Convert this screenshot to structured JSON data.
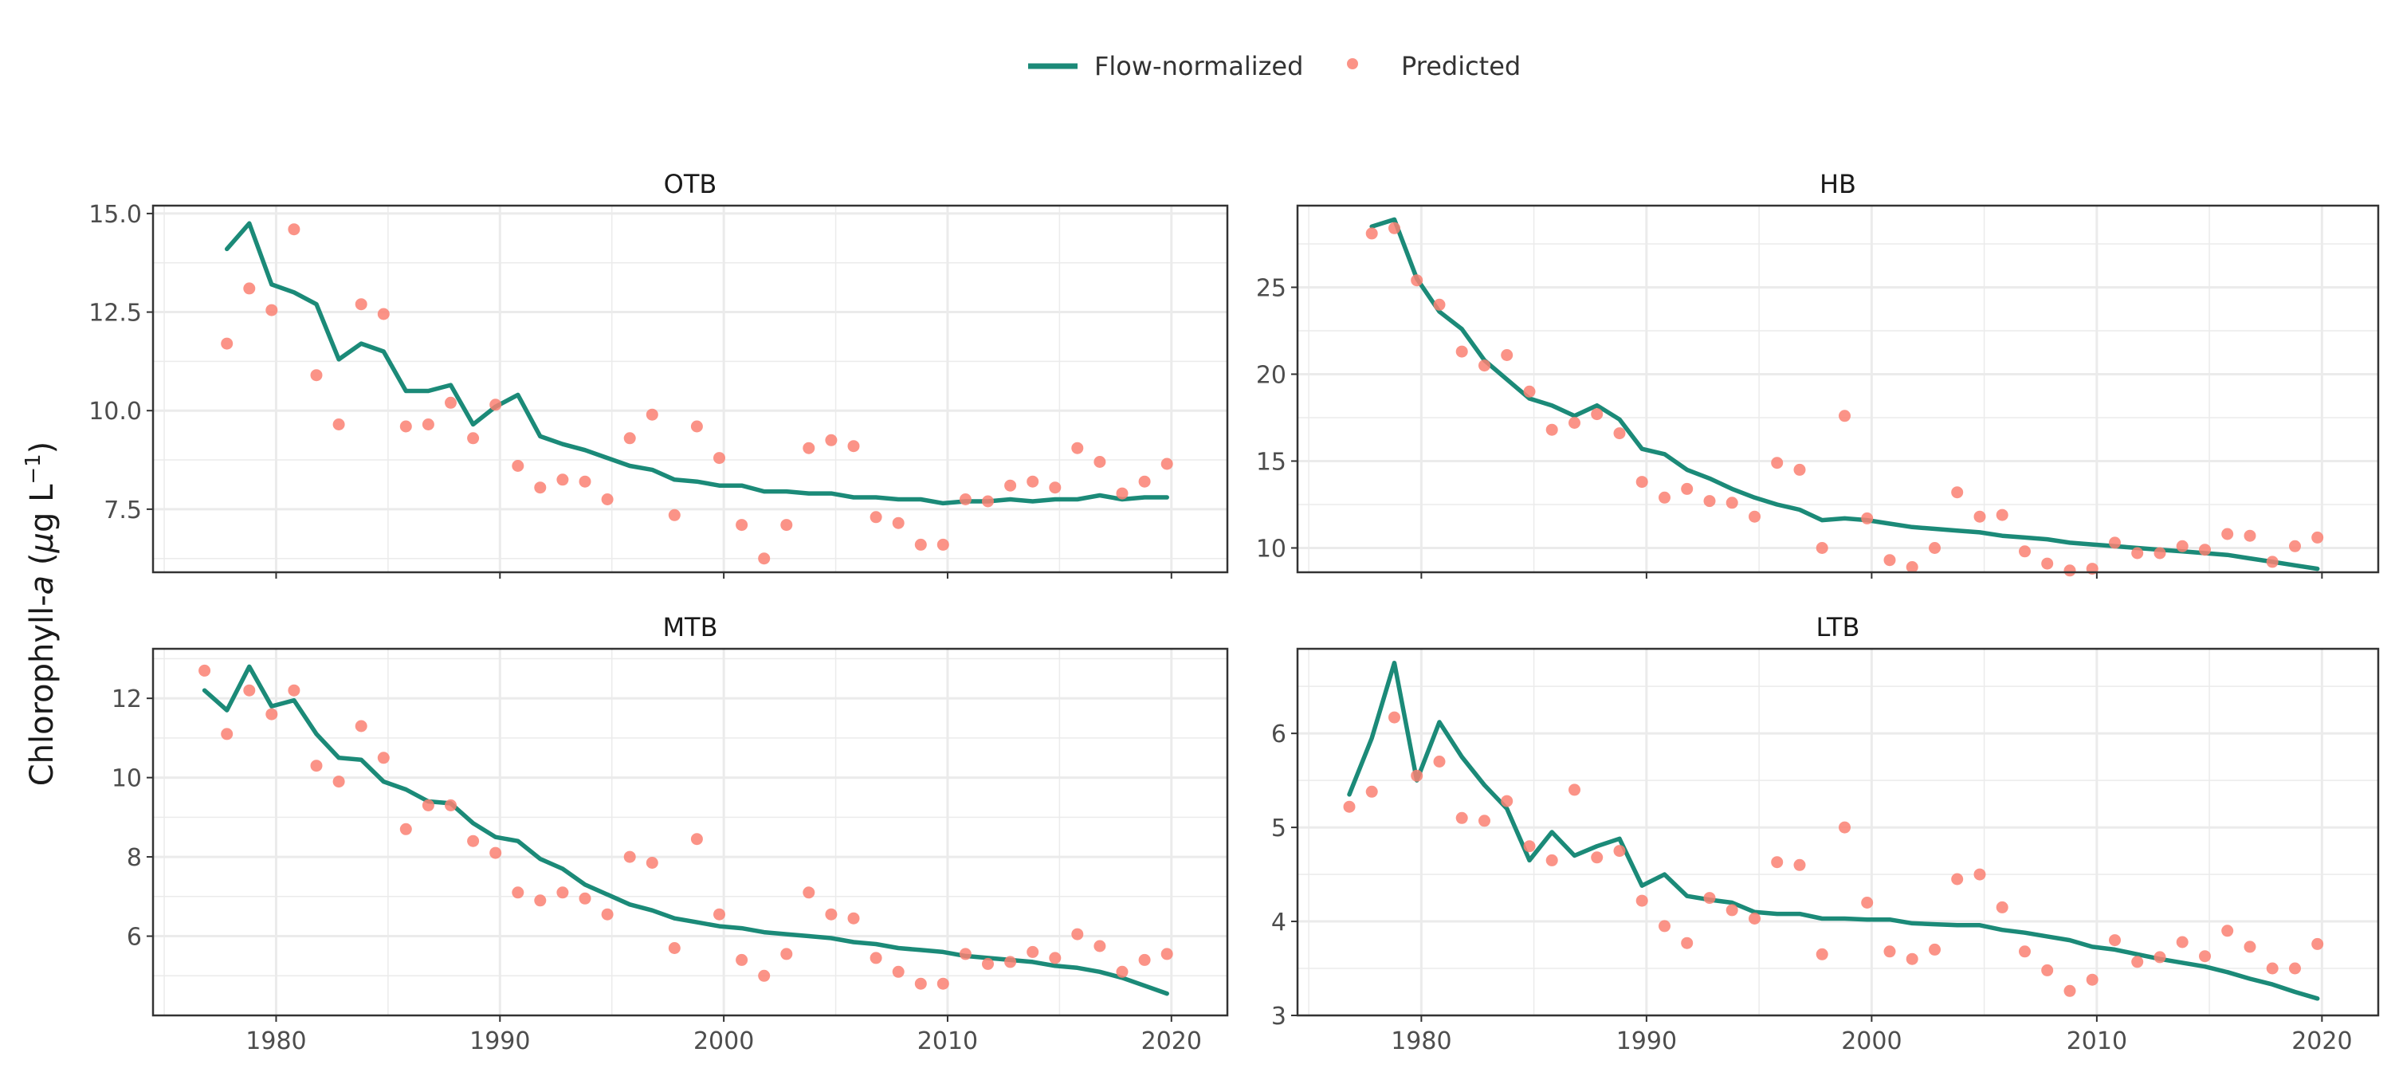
{
  "legend": {
    "flow_label": "Flow-normalized",
    "pred_label": "Predicted"
  },
  "ylabel": {
    "prefix": "Chlorophyll-",
    "italic": "a",
    "open": " (",
    "mu": "μ",
    "unit": "g L",
    "exp": "−1",
    "close": ")"
  },
  "colors": {
    "flow": "#1b8a78",
    "pred": "#fa8072",
    "grid": "#ebebeb",
    "frame": "#333333"
  },
  "chart_data": [
    {
      "type": "line",
      "title": "OTB",
      "xlim": [
        1974.5,
        2022.5
      ],
      "ylim": [
        5.9,
        15.2
      ],
      "xticks": [
        1980,
        1990,
        2000,
        2010,
        2020
      ],
      "yticks": [
        7.5,
        10.0,
        12.5,
        15.0
      ],
      "ytick_labels": [
        "7.5",
        "10.0",
        "12.5",
        "15.0"
      ],
      "show_x_tick_labels": false,
      "series": [
        {
          "name": "Flow-normalized",
          "type": "line",
          "x": [
            1977.8,
            1978.8,
            1979.8,
            1980.8,
            1981.8,
            1982.8,
            1983.8,
            1984.8,
            1985.8,
            1986.8,
            1987.8,
            1988.8,
            1989.8,
            1990.8,
            1991.8,
            1992.8,
            1993.8,
            1994.8,
            1995.8,
            1996.8,
            1997.8,
            1998.8,
            1999.8,
            2000.8,
            2001.8,
            2002.8,
            2003.8,
            2004.8,
            2005.8,
            2006.8,
            2007.8,
            2008.8,
            2009.8,
            2010.8,
            2011.8,
            2012.8,
            2013.8,
            2014.8,
            2015.8,
            2016.8,
            2017.8,
            2018.8,
            2019.8
          ],
          "y": [
            14.1,
            14.75,
            13.2,
            13.0,
            12.7,
            11.3,
            11.7,
            11.5,
            10.5,
            10.5,
            10.65,
            9.65,
            10.1,
            10.4,
            9.35,
            9.15,
            9.0,
            8.8,
            8.6,
            8.5,
            8.25,
            8.2,
            8.1,
            8.1,
            7.95,
            7.95,
            7.9,
            7.9,
            7.8,
            7.8,
            7.75,
            7.75,
            7.65,
            7.7,
            7.7,
            7.75,
            7.7,
            7.75,
            7.75,
            7.85,
            7.75,
            7.8,
            7.8
          ]
        },
        {
          "name": "Predicted",
          "type": "scatter",
          "x": [
            1977.8,
            1978.8,
            1979.8,
            1980.8,
            1981.8,
            1982.8,
            1983.8,
            1984.8,
            1985.8,
            1986.8,
            1987.8,
            1988.8,
            1989.8,
            1990.8,
            1991.8,
            1992.8,
            1993.8,
            1994.8,
            1995.8,
            1996.8,
            1997.8,
            1998.8,
            1999.8,
            2000.8,
            2001.8,
            2002.8,
            2003.8,
            2004.8,
            2005.8,
            2006.8,
            2007.8,
            2008.8,
            2009.8,
            2010.8,
            2011.8,
            2012.8,
            2013.8,
            2014.8,
            2015.8,
            2016.8,
            2017.8,
            2018.8,
            2019.8
          ],
          "y": [
            11.7,
            13.1,
            12.55,
            14.6,
            10.9,
            9.65,
            12.7,
            12.45,
            9.6,
            9.65,
            10.2,
            9.3,
            10.15,
            8.6,
            8.05,
            8.25,
            8.2,
            7.75,
            9.3,
            9.9,
            7.35,
            9.6,
            8.8,
            7.1,
            6.25,
            7.1,
            9.05,
            9.25,
            9.1,
            7.3,
            7.15,
            6.6,
            6.6,
            7.75,
            7.7,
            8.1,
            8.2,
            8.05,
            9.05,
            8.7,
            7.9,
            8.2,
            8.65
          ]
        }
      ]
    },
    {
      "type": "line",
      "title": "HB",
      "xlim": [
        1974.5,
        2022.5
      ],
      "ylim": [
        8.6,
        29.7
      ],
      "xticks": [
        1980,
        1990,
        2000,
        2010,
        2020
      ],
      "yticks": [
        10,
        15,
        20,
        25
      ],
      "ytick_labels": [
        "10",
        "15",
        "20",
        "25"
      ],
      "show_x_tick_labels": false,
      "series": [
        {
          "name": "Flow-normalized",
          "type": "line",
          "x": [
            1977.8,
            1978.8,
            1979.8,
            1980.8,
            1981.8,
            1982.8,
            1983.8,
            1984.8,
            1985.8,
            1986.8,
            1987.8,
            1988.8,
            1989.8,
            1990.8,
            1991.8,
            1992.8,
            1993.8,
            1994.8,
            1995.8,
            1996.8,
            1997.8,
            1998.8,
            1999.8,
            2000.8,
            2001.8,
            2002.8,
            2003.8,
            2004.8,
            2005.8,
            2006.8,
            2007.8,
            2008.8,
            2009.8,
            2010.8,
            2011.8,
            2012.8,
            2013.8,
            2014.8,
            2015.8,
            2016.8,
            2017.8,
            2018.8,
            2019.8
          ],
          "y": [
            28.5,
            28.9,
            25.5,
            23.6,
            22.6,
            20.8,
            19.7,
            18.6,
            18.2,
            17.6,
            18.2,
            17.4,
            15.7,
            15.4,
            14.5,
            14.0,
            13.4,
            12.9,
            12.5,
            12.2,
            11.6,
            11.7,
            11.6,
            11.4,
            11.2,
            11.1,
            11.0,
            10.9,
            10.7,
            10.6,
            10.5,
            10.3,
            10.2,
            10.1,
            10.0,
            9.9,
            9.8,
            9.7,
            9.6,
            9.4,
            9.2,
            9.0,
            8.8
          ]
        },
        {
          "name": "Predicted",
          "type": "scatter",
          "x": [
            1977.8,
            1978.8,
            1979.8,
            1980.8,
            1981.8,
            1982.8,
            1983.8,
            1984.8,
            1985.8,
            1986.8,
            1987.8,
            1988.8,
            1989.8,
            1990.8,
            1991.8,
            1992.8,
            1993.8,
            1994.8,
            1995.8,
            1996.8,
            1997.8,
            1998.8,
            1999.8,
            2000.8,
            2001.8,
            2002.8,
            2003.8,
            2004.8,
            2005.8,
            2006.8,
            2007.8,
            2008.8,
            2009.8,
            2010.8,
            2011.8,
            2012.8,
            2013.8,
            2014.8,
            2015.8,
            2016.8,
            2017.8,
            2018.8,
            2019.8
          ],
          "y": [
            28.1,
            28.4,
            25.4,
            24.0,
            21.3,
            20.5,
            21.1,
            19.0,
            16.8,
            17.2,
            17.7,
            16.6,
            13.8,
            12.9,
            13.4,
            12.7,
            12.6,
            11.8,
            14.9,
            14.5,
            10.0,
            17.6,
            11.7,
            9.3,
            8.9,
            10.0,
            13.2,
            11.8,
            11.9,
            9.8,
            9.1,
            8.7,
            8.8,
            10.3,
            9.7,
            9.7,
            10.1,
            9.9,
            10.8,
            10.7,
            9.2,
            10.1,
            10.6
          ]
        }
      ]
    },
    {
      "type": "line",
      "title": "MTB",
      "xlim": [
        1974.5,
        2022.5
      ],
      "ylim": [
        4.0,
        13.25
      ],
      "xticks": [
        1980,
        1990,
        2000,
        2010,
        2020
      ],
      "yticks": [
        6,
        8,
        10,
        12
      ],
      "ytick_labels": [
        "6",
        "8",
        "10",
        "12"
      ],
      "show_x_tick_labels": true,
      "xtick_labels": [
        "1980",
        "1990",
        "2000",
        "2010",
        "2020"
      ],
      "series": [
        {
          "name": "Flow-normalized",
          "type": "line",
          "x": [
            1976.8,
            1977.8,
            1978.8,
            1979.8,
            1980.8,
            1981.8,
            1982.8,
            1983.8,
            1984.8,
            1985.8,
            1986.8,
            1987.8,
            1988.8,
            1989.8,
            1990.8,
            1991.8,
            1992.8,
            1993.8,
            1994.8,
            1995.8,
            1996.8,
            1997.8,
            1998.8,
            1999.8,
            2000.8,
            2001.8,
            2002.8,
            2003.8,
            2004.8,
            2005.8,
            2006.8,
            2007.8,
            2008.8,
            2009.8,
            2010.8,
            2011.8,
            2012.8,
            2013.8,
            2014.8,
            2015.8,
            2016.8,
            2017.8,
            2018.8,
            2019.8
          ],
          "y": [
            12.2,
            11.7,
            12.8,
            11.8,
            11.95,
            11.1,
            10.5,
            10.45,
            9.9,
            9.7,
            9.4,
            9.35,
            8.85,
            8.5,
            8.4,
            7.95,
            7.7,
            7.3,
            7.05,
            6.8,
            6.65,
            6.45,
            6.35,
            6.25,
            6.2,
            6.1,
            6.05,
            6.0,
            5.95,
            5.85,
            5.8,
            5.7,
            5.65,
            5.6,
            5.5,
            5.45,
            5.4,
            5.35,
            5.25,
            5.2,
            5.1,
            4.95,
            4.75,
            4.55
          ]
        },
        {
          "name": "Predicted",
          "type": "scatter",
          "x": [
            1976.8,
            1977.8,
            1978.8,
            1979.8,
            1980.8,
            1981.8,
            1982.8,
            1983.8,
            1984.8,
            1985.8,
            1986.8,
            1987.8,
            1988.8,
            1989.8,
            1990.8,
            1991.8,
            1992.8,
            1993.8,
            1994.8,
            1995.8,
            1996.8,
            1997.8,
            1998.8,
            1999.8,
            2000.8,
            2001.8,
            2002.8,
            2003.8,
            2004.8,
            2005.8,
            2006.8,
            2007.8,
            2008.8,
            2009.8,
            2010.8,
            2011.8,
            2012.8,
            2013.8,
            2014.8,
            2015.8,
            2016.8,
            2017.8,
            2018.8,
            2019.8
          ],
          "y": [
            12.7,
            11.1,
            12.2,
            11.6,
            12.2,
            10.3,
            9.9,
            11.3,
            10.5,
            8.7,
            9.3,
            9.3,
            8.4,
            8.1,
            7.1,
            6.9,
            7.1,
            6.95,
            6.55,
            8.0,
            7.85,
            5.7,
            8.45,
            6.55,
            5.4,
            5.0,
            5.55,
            7.1,
            6.55,
            6.45,
            5.45,
            5.1,
            4.8,
            4.8,
            5.55,
            5.3,
            5.35,
            5.6,
            5.45,
            6.05,
            5.75,
            5.1,
            5.4,
            5.55
          ]
        }
      ]
    },
    {
      "type": "line",
      "title": "LTB",
      "xlim": [
        1974.5,
        2022.5
      ],
      "ylim": [
        3.0,
        6.9
      ],
      "xticks": [
        1980,
        1990,
        2000,
        2010,
        2020
      ],
      "yticks": [
        3,
        4,
        5,
        6
      ],
      "ytick_labels": [
        "3",
        "4",
        "5",
        "6"
      ],
      "show_x_tick_labels": true,
      "xtick_labels": [
        "1980",
        "1990",
        "2000",
        "2010",
        "2020"
      ],
      "series": [
        {
          "name": "Flow-normalized",
          "type": "line",
          "x": [
            1976.8,
            1977.8,
            1978.8,
            1979.8,
            1980.8,
            1981.8,
            1982.8,
            1983.8,
            1984.8,
            1985.8,
            1986.8,
            1987.8,
            1988.8,
            1989.8,
            1990.8,
            1991.8,
            1992.8,
            1993.8,
            1994.8,
            1995.8,
            1996.8,
            1997.8,
            1998.8,
            1999.8,
            2000.8,
            2001.8,
            2002.8,
            2003.8,
            2004.8,
            2005.8,
            2006.8,
            2007.8,
            2008.8,
            2009.8,
            2010.8,
            2011.8,
            2012.8,
            2013.8,
            2014.8,
            2015.8,
            2016.8,
            2017.8,
            2018.8,
            2019.8
          ],
          "y": [
            5.35,
            5.95,
            6.75,
            5.5,
            6.12,
            5.75,
            5.45,
            5.2,
            4.65,
            4.95,
            4.7,
            4.8,
            4.88,
            4.38,
            4.5,
            4.27,
            4.23,
            4.2,
            4.1,
            4.08,
            4.08,
            4.03,
            4.03,
            4.02,
            4.02,
            3.98,
            3.97,
            3.96,
            3.96,
            3.91,
            3.88,
            3.84,
            3.8,
            3.73,
            3.7,
            3.65,
            3.6,
            3.56,
            3.52,
            3.46,
            3.39,
            3.33,
            3.25,
            3.18
          ]
        },
        {
          "name": "Predicted",
          "type": "scatter",
          "x": [
            1976.8,
            1977.8,
            1978.8,
            1979.8,
            1980.8,
            1981.8,
            1982.8,
            1983.8,
            1984.8,
            1985.8,
            1986.8,
            1987.8,
            1988.8,
            1989.8,
            1990.8,
            1991.8,
            1992.8,
            1993.8,
            1994.8,
            1995.8,
            1996.8,
            1997.8,
            1998.8,
            1999.8,
            2000.8,
            2001.8,
            2002.8,
            2003.8,
            2004.8,
            2005.8,
            2006.8,
            2007.8,
            2008.8,
            2009.8,
            2010.8,
            2011.8,
            2012.8,
            2013.8,
            2014.8,
            2015.8,
            2016.8,
            2017.8,
            2018.8,
            2019.8
          ],
          "y": [
            5.22,
            5.38,
            6.17,
            5.55,
            5.7,
            5.1,
            5.07,
            5.28,
            4.8,
            4.65,
            5.4,
            4.68,
            4.75,
            4.22,
            3.95,
            3.77,
            4.25,
            4.12,
            4.03,
            4.63,
            4.6,
            3.65,
            5.0,
            4.2,
            3.68,
            3.6,
            3.7,
            4.45,
            4.5,
            4.15,
            3.68,
            3.48,
            3.26,
            3.38,
            3.8,
            3.57,
            3.62,
            3.78,
            3.63,
            3.9,
            3.73,
            3.5,
            3.5,
            3.76
          ]
        }
      ]
    }
  ]
}
